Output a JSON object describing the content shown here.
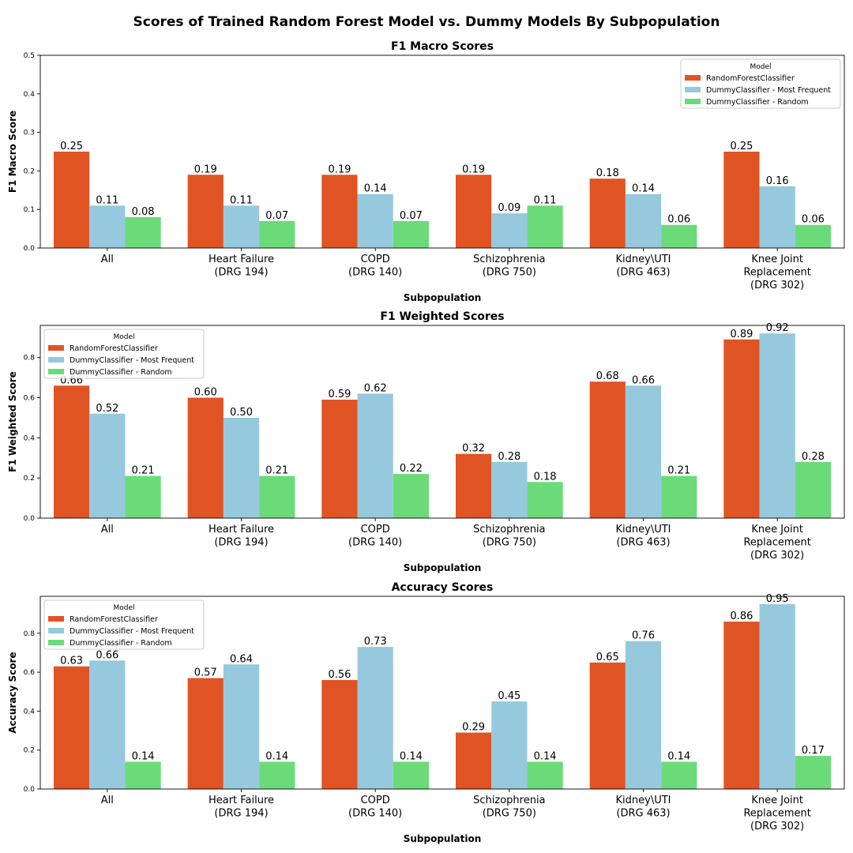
{
  "suptitle": "Scores of Trained Random Forest Model vs. Dummy Models By Subpopulation",
  "chart_data": [
    {
      "type": "bar",
      "title": "F1 Macro Scores",
      "xlabel": "Subpopulation",
      "ylabel": "F1 Macro Score",
      "ylim": [
        0,
        0.5
      ],
      "yticks": [
        "0.0",
        "0.1",
        "0.2",
        "0.3",
        "0.4",
        "0.5"
      ],
      "legend_title": "Model",
      "legend_position": "upper right",
      "categories": [
        [
          "All"
        ],
        [
          "Heart Failure",
          "(DRG 194)"
        ],
        [
          "COPD",
          "(DRG 140)"
        ],
        [
          "Schizophrenia",
          "(DRG 750)"
        ],
        [
          "Kidney\\UTI",
          "(DRG 463)"
        ],
        [
          "Knee Joint",
          "Replacement",
          "(DRG 302)"
        ]
      ],
      "series": [
        {
          "name": "RandomForestClassifier",
          "color": "#e05424",
          "values": [
            0.25,
            0.19,
            0.19,
            0.19,
            0.18,
            0.25
          ]
        },
        {
          "name": "DummyClassifier - Most Frequent",
          "color": "#96c9dd",
          "values": [
            0.11,
            0.11,
            0.14,
            0.09,
            0.14,
            0.16
          ]
        },
        {
          "name": "DummyClassifier - Random",
          "color": "#6bdb79",
          "values": [
            0.08,
            0.07,
            0.07,
            0.11,
            0.06,
            0.06
          ]
        }
      ],
      "labels": [
        [
          "0.25",
          "0.19",
          "0.19",
          "0.19",
          "0.18",
          "0.25"
        ],
        [
          "0.11",
          "0.11",
          "0.14",
          "0.09",
          "0.14",
          "0.16"
        ],
        [
          "0.08",
          "0.07",
          "0.07",
          "0.11",
          "0.06",
          "0.06"
        ]
      ]
    },
    {
      "type": "bar",
      "title": "F1 Weighted Scores",
      "xlabel": "Subpopulation",
      "ylabel": "F1 Weighted Score",
      "ylim": [
        0,
        0.96
      ],
      "yticks": [
        "0.0",
        "0.2",
        "0.4",
        "0.6",
        "0.8"
      ],
      "legend_title": "Model",
      "legend_position": "upper left",
      "categories": [
        [
          "All"
        ],
        [
          "Heart Failure",
          "(DRG 194)"
        ],
        [
          "COPD",
          "(DRG 140)"
        ],
        [
          "Schizophrenia",
          "(DRG 750)"
        ],
        [
          "Kidney\\UTI",
          "(DRG 463)"
        ],
        [
          "Knee Joint",
          "Replacement",
          "(DRG 302)"
        ]
      ],
      "series": [
        {
          "name": "RandomForestClassifier",
          "color": "#e05424",
          "values": [
            0.66,
            0.6,
            0.59,
            0.32,
            0.68,
            0.89
          ]
        },
        {
          "name": "DummyClassifier - Most Frequent",
          "color": "#96c9dd",
          "values": [
            0.52,
            0.5,
            0.62,
            0.28,
            0.66,
            0.92
          ]
        },
        {
          "name": "DummyClassifier - Random",
          "color": "#6bdb79",
          "values": [
            0.21,
            0.21,
            0.22,
            0.18,
            0.21,
            0.28
          ]
        }
      ],
      "labels": [
        [
          "0.66",
          "0.60",
          "0.59",
          "0.32",
          "0.68",
          "0.89"
        ],
        [
          "0.52",
          "0.50",
          "0.62",
          "0.28",
          "0.66",
          "0.92"
        ],
        [
          "0.21",
          "0.21",
          "0.22",
          "0.18",
          "0.21",
          "0.28"
        ]
      ]
    },
    {
      "type": "bar",
      "title": "Accuracy Scores",
      "xlabel": "Subpopulation",
      "ylabel": "Accuracy Score",
      "ylim": [
        0,
        0.99
      ],
      "yticks": [
        "0.0",
        "0.2",
        "0.4",
        "0.6",
        "0.8"
      ],
      "legend_title": "Model",
      "legend_position": "upper left",
      "categories": [
        [
          "All"
        ],
        [
          "Heart Failure",
          "(DRG 194)"
        ],
        [
          "COPD",
          "(DRG 140)"
        ],
        [
          "Schizophrenia",
          "(DRG 750)"
        ],
        [
          "Kidney\\UTI",
          "(DRG 463)"
        ],
        [
          "Knee Joint",
          "Replacement",
          "(DRG 302)"
        ]
      ],
      "series": [
        {
          "name": "RandomForestClassifier",
          "color": "#e05424",
          "values": [
            0.63,
            0.57,
            0.56,
            0.29,
            0.65,
            0.86
          ]
        },
        {
          "name": "DummyClassifier - Most Frequent",
          "color": "#96c9dd",
          "values": [
            0.66,
            0.64,
            0.73,
            0.45,
            0.76,
            0.95
          ]
        },
        {
          "name": "DummyClassifier - Random",
          "color": "#6bdb79",
          "values": [
            0.14,
            0.14,
            0.14,
            0.14,
            0.14,
            0.17
          ]
        }
      ],
      "labels": [
        [
          "0.63",
          "0.57",
          "0.56",
          "0.29",
          "0.65",
          "0.86"
        ],
        [
          "0.66",
          "0.64",
          "0.73",
          "0.45",
          "0.76",
          "0.95"
        ],
        [
          "0.14",
          "0.14",
          "0.14",
          "0.14",
          "0.14",
          "0.17"
        ]
      ]
    }
  ]
}
